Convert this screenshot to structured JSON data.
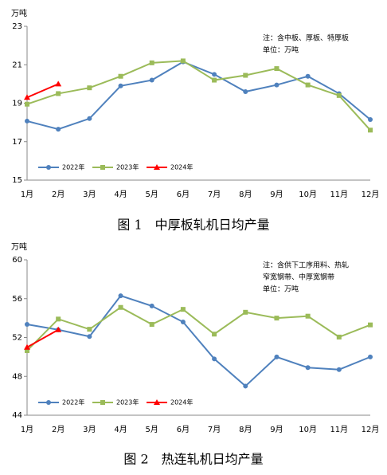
{
  "chart_data": [
    {
      "type": "line",
      "title": "图 1　中厚板轧机日均产量",
      "ylabel": "万吨",
      "annotations": [
        "注：含中板、厚板、特厚板",
        "单位：万吨"
      ],
      "categories": [
        "1月",
        "2月",
        "3月",
        "4月",
        "5月",
        "6月",
        "7月",
        "8月",
        "9月",
        "10月",
        "11月",
        "12月"
      ],
      "ylim": [
        15,
        23
      ],
      "yticks": [
        15,
        17,
        19,
        21,
        23
      ],
      "grid": false,
      "series": [
        {
          "name": "2022年",
          "color": "#4f81bd",
          "values": [
            18.07,
            17.65,
            18.2,
            19.9,
            20.2,
            21.15,
            20.5,
            19.6,
            19.95,
            20.4,
            19.5,
            18.15
          ]
        },
        {
          "name": "2023年",
          "color": "#9bbb59",
          "values": [
            18.95,
            19.5,
            19.8,
            20.4,
            21.1,
            21.2,
            20.2,
            20.45,
            20.8,
            19.95,
            19.4,
            17.6
          ]
        },
        {
          "name": "2024年",
          "color": "#ff0000",
          "values": [
            19.3,
            20.0,
            null,
            null,
            null,
            null,
            null,
            null,
            null,
            null,
            null,
            null
          ]
        }
      ]
    },
    {
      "type": "line",
      "title": "图 2　热连轧机日均产量",
      "ylabel": "万吨",
      "annotations": [
        "注：含供下工序用料、热轧",
        "窄宽钢带、中厚宽钢带",
        "单位：万吨"
      ],
      "categories": [
        "1月",
        "2月",
        "3月",
        "4月",
        "5月",
        "6月",
        "7月",
        "8月",
        "9月",
        "10月",
        "11月",
        "12月"
      ],
      "ylim": [
        44,
        60
      ],
      "yticks": [
        44,
        48,
        52,
        56,
        60
      ],
      "grid": false,
      "series": [
        {
          "name": "2022年",
          "color": "#4f81bd",
          "values": [
            53.35,
            52.8,
            52.1,
            56.3,
            55.25,
            53.6,
            49.8,
            47.0,
            50.0,
            48.9,
            48.7,
            50.0
          ]
        },
        {
          "name": "2023年",
          "color": "#9bbb59",
          "values": [
            50.65,
            53.9,
            52.85,
            55.1,
            53.35,
            54.9,
            52.35,
            54.6,
            54.0,
            54.2,
            52.05,
            53.3
          ]
        },
        {
          "name": "2024年",
          "color": "#ff0000",
          "values": [
            51.0,
            52.8,
            null,
            null,
            null,
            null,
            null,
            null,
            null,
            null,
            null,
            null
          ]
        }
      ]
    }
  ]
}
